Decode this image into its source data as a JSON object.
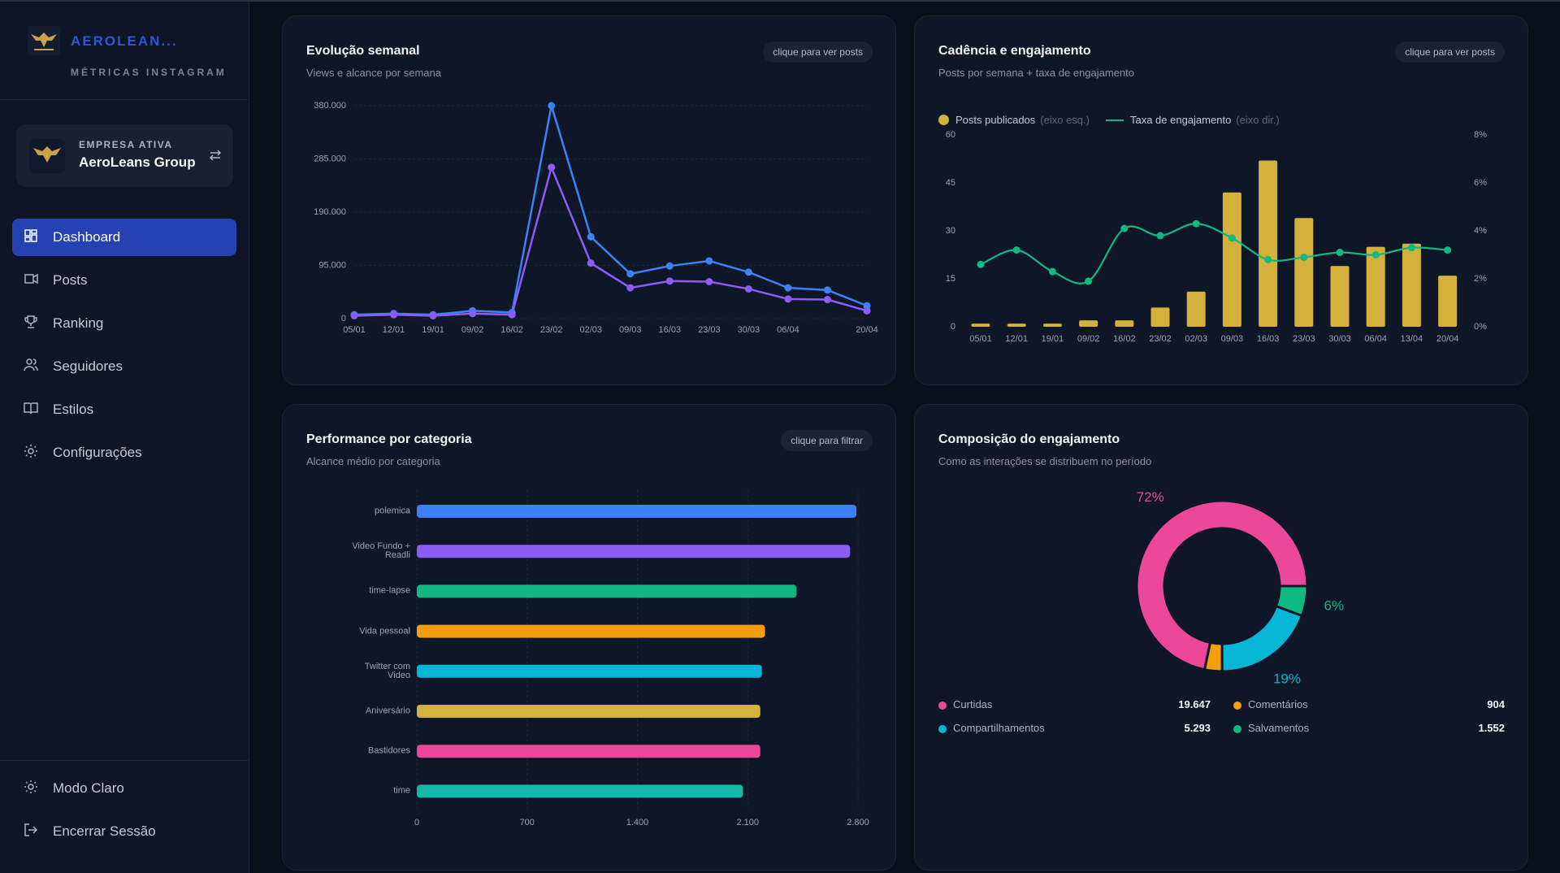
{
  "sidebar": {
    "brand": "AEROLEAN...",
    "tagline": "MÉTRICAS INSTAGRAM",
    "company_label": "EMPRESA ATIVA",
    "company_name": "AeroLeans Group",
    "nav": [
      "Dashboard",
      "Posts",
      "Ranking",
      "Seguidores",
      "Estilos",
      "Configurações"
    ],
    "active_nav": 0,
    "footer": [
      "Modo Claro",
      "Encerrar Sessão"
    ]
  },
  "chart_data": [
    {
      "type": "line",
      "title": "Evolução semanal",
      "subtitle": "Views e alcance por semana",
      "action": "clique para ver posts",
      "categories": [
        "05/01",
        "12/01",
        "19/01",
        "09/02",
        "16/02",
        "23/02",
        "02/03",
        "09/03",
        "16/03",
        "23/03",
        "30/03",
        "06/04",
        null,
        "20/04"
      ],
      "series": [
        {
          "color": "#3b82f6",
          "values": [
            7000,
            9000,
            7000,
            14000,
            11000,
            380000,
            146000,
            80000,
            94000,
            103000,
            83000,
            55000,
            51000,
            23000
          ]
        },
        {
          "color": "#8b5cf6",
          "values": [
            5000,
            7000,
            5000,
            9000,
            7000,
            270000,
            99000,
            55000,
            67000,
            66000,
            53000,
            35000,
            34000,
            14000
          ]
        }
      ],
      "ylim": [
        0,
        380000
      ],
      "yticks": [
        0,
        {
          "value": 95000,
          "label": "95.000"
        },
        {
          "value": 190000,
          "label": "190.000"
        },
        {
          "value": 285000,
          "label": "285.000"
        },
        {
          "value": 380000,
          "label": "380.000"
        }
      ],
      "grid": true
    },
    {
      "type": "combo",
      "title": "Cadência e engajamento",
      "subtitle": "Posts por semana + taxa de engajamento",
      "action": "clique para ver posts",
      "categories": [
        "05/01",
        "12/01",
        "19/01",
        "09/02",
        "16/02",
        "23/02",
        "02/03",
        "09/03",
        "16/03",
        "23/03",
        "30/03",
        "06/04",
        "13/04",
        "20/04"
      ],
      "series": [
        {
          "name": "Posts publicados",
          "legend_note": "(eixo esq.)",
          "color": "#d4b13b",
          "values": [
            1,
            1,
            1,
            2,
            2,
            6,
            11,
            42,
            52,
            34,
            19,
            25,
            26,
            16
          ]
        },
        {
          "name": "Taxa de engajamento",
          "legend_note": "(eixo dir.)",
          "color": "#10b981",
          "axis": "y2",
          "values": [
            2.6,
            3.2,
            2.3,
            1.9,
            4.1,
            3.8,
            4.3,
            3.7,
            2.8,
            2.9,
            3.1,
            3.0,
            3.3,
            3.2
          ]
        }
      ],
      "ylim": [
        0,
        60
      ],
      "yticks": [
        0,
        15,
        30,
        45,
        60
      ],
      "y2lim": [
        0,
        8
      ],
      "y2ticks": [
        {
          "value": 0,
          "label": "0%"
        },
        {
          "value": 2,
          "label": "2%"
        },
        {
          "value": 4,
          "label": "4%"
        },
        {
          "value": 6,
          "label": "6%"
        },
        {
          "value": 8,
          "label": "8%"
        }
      ],
      "grid": false
    },
    {
      "type": "hbar",
      "title": "Performance por categoria",
      "subtitle": "Alcance médio por categoria",
      "action": "clique para filtrar",
      "categories": [
        "polemica",
        "Video Fundo + Readli",
        "time-lapse",
        "Vida pessoal",
        "Twitter com Video",
        "Aniversário",
        "Bastidores",
        "time"
      ],
      "values": [
        2790,
        2750,
        2410,
        2210,
        2190,
        2180,
        2180,
        2070
      ],
      "colors": [
        "#3b82f6",
        "#8b5cf6",
        "#10b981",
        "#f59e0b",
        "#06b6d4",
        "#d4b43f",
        "#ec4899",
        "#14b8a6"
      ],
      "xlim": [
        0,
        2800
      ],
      "xticks": [
        0,
        700,
        {
          "value": 1400,
          "label": "1.400"
        },
        {
          "value": 2100,
          "label": "2.100"
        },
        {
          "value": 2800,
          "label": "2.800"
        }
      ],
      "grid": true
    },
    {
      "type": "donut",
      "title": "Composição do engajamento",
      "subtitle": "Como as interações se distribuem no período",
      "categories": [
        "Curtidas",
        "Comentários",
        "Compartilhamentos",
        "Salvamentos"
      ],
      "values": [
        19647,
        904,
        5293,
        1552
      ],
      "value_labels": [
        "19.647",
        "904",
        "5.293",
        "1.552"
      ],
      "percent_labels": [
        "72%",
        null,
        "19%",
        "6%"
      ],
      "colors": [
        "#ec4899",
        "#f59e0b",
        "#06b6d4",
        "#10b981"
      ]
    }
  ]
}
